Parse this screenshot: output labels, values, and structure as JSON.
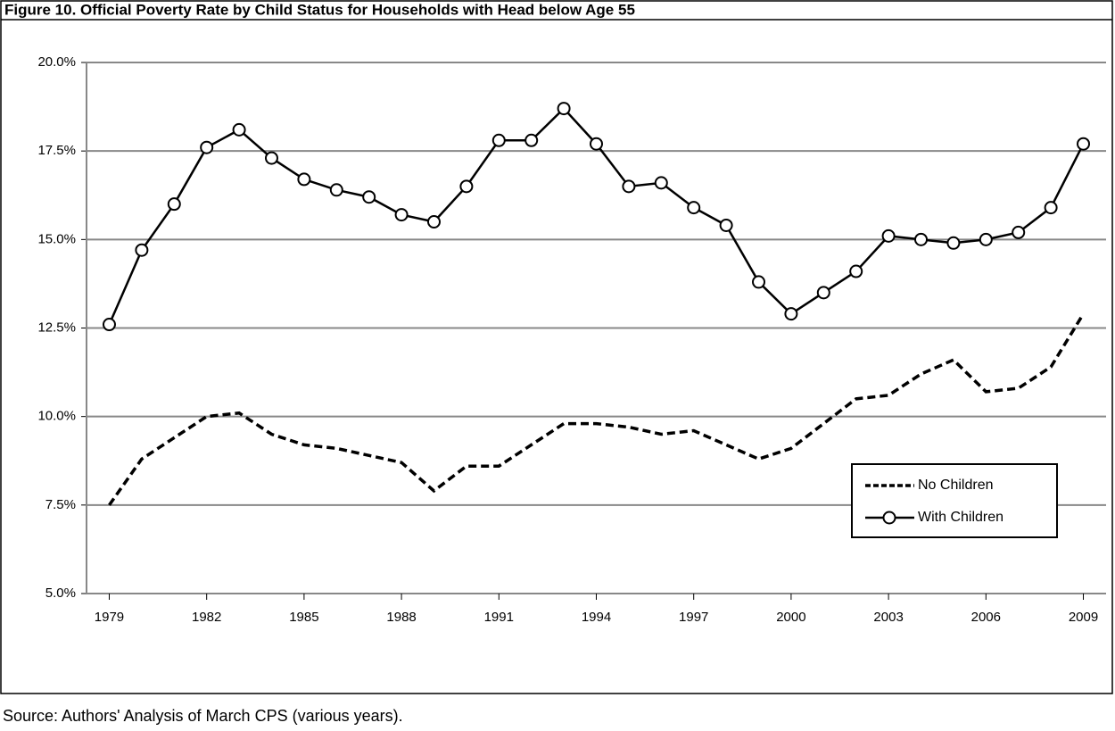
{
  "chart_data": {
    "type": "line",
    "title": "Figure 10. Official Poverty Rate by Child Status for Households with Head below Age 55",
    "source": "Source: Authors' Analysis of March CPS (various years).",
    "x": [
      1979,
      1980,
      1981,
      1982,
      1983,
      1984,
      1985,
      1986,
      1987,
      1988,
      1989,
      1990,
      1991,
      1992,
      1993,
      1994,
      1995,
      1996,
      1997,
      1998,
      1999,
      2000,
      2001,
      2002,
      2003,
      2004,
      2005,
      2006,
      2007,
      2008,
      2009
    ],
    "series": [
      {
        "name": "No Children",
        "color": "#000000",
        "line_style": "dashed",
        "marker": "none",
        "values": [
          7.5,
          8.8,
          9.4,
          10.0,
          10.1,
          9.5,
          9.2,
          9.1,
          8.9,
          8.7,
          7.9,
          8.6,
          8.6,
          9.2,
          9.8,
          9.8,
          9.7,
          9.5,
          9.6,
          9.2,
          8.8,
          9.1,
          9.8,
          10.5,
          10.6,
          11.2,
          11.6,
          10.7,
          10.8,
          11.4,
          12.9
        ]
      },
      {
        "name": "With Children",
        "color": "#000000",
        "line_style": "solid",
        "marker": "circle",
        "values": [
          12.6,
          14.7,
          16.0,
          17.6,
          18.1,
          17.3,
          16.7,
          16.4,
          16.2,
          15.7,
          15.5,
          16.5,
          17.8,
          17.8,
          18.7,
          17.7,
          16.5,
          16.6,
          15.9,
          15.4,
          13.8,
          12.9,
          13.5,
          14.1,
          15.1,
          15.0,
          14.9,
          15.0,
          15.2,
          15.9,
          17.7
        ]
      }
    ],
    "xlim": [
      1978.3,
      2009.7
    ],
    "xticks": [
      1979,
      1982,
      1985,
      1988,
      1991,
      1994,
      1997,
      2000,
      2003,
      2006,
      2009
    ],
    "ylim": [
      5,
      20
    ],
    "yticks": [
      {
        "value": 5,
        "label": "5.0%"
      },
      {
        "value": 7.5,
        "label": "7.5%"
      },
      {
        "value": 10,
        "label": "10.0%"
      },
      {
        "value": 12.5,
        "label": "12.5%"
      },
      {
        "value": 15,
        "label": "15.0%"
      },
      {
        "value": 17.5,
        "label": "17.5%"
      },
      {
        "value": 20,
        "label": "20.0%"
      }
    ],
    "grid": true,
    "legend": "lower right"
  }
}
